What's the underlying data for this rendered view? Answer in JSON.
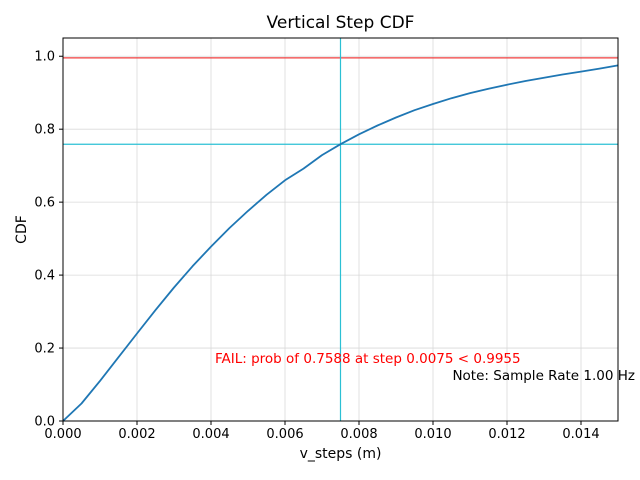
{
  "chart_data": {
    "type": "line",
    "title": "Vertical Step CDF",
    "xlabel": "v_steps (m)",
    "ylabel": "CDF",
    "xlim": [
      0,
      0.015
    ],
    "ylim": [
      0,
      1.05
    ],
    "grid": true,
    "xticks": [
      0.0,
      0.002,
      0.004,
      0.006,
      0.008,
      0.01,
      0.012,
      0.014
    ],
    "xtick_labels": [
      "0.000",
      "0.002",
      "0.004",
      "0.006",
      "0.008",
      "0.010",
      "0.012",
      "0.014"
    ],
    "yticks": [
      0.0,
      0.2,
      0.4,
      0.6,
      0.8,
      1.0
    ],
    "ytick_labels": [
      "0.0",
      "0.2",
      "0.4",
      "0.6",
      "0.8",
      "1.0"
    ],
    "colors": {
      "curve": "#1f77b4",
      "threshold_line": "#f03e3e",
      "marker_line": "#2bc0d4",
      "grid": "#d9d9d9",
      "spine": "#000000",
      "fail_text": "#ff0000"
    },
    "series": [
      {
        "name": "vertical-step-cdf",
        "x": [
          0.0,
          0.0005,
          0.001,
          0.0015,
          0.002,
          0.0025,
          0.003,
          0.0035,
          0.004,
          0.0045,
          0.005,
          0.0055,
          0.006,
          0.0065,
          0.007,
          0.0075,
          0.008,
          0.0085,
          0.009,
          0.0095,
          0.01,
          0.0105,
          0.011,
          0.0115,
          0.012,
          0.0125,
          0.013,
          0.0135,
          0.014,
          0.0145,
          0.015
        ],
        "y": [
          0.0,
          0.048,
          0.11,
          0.175,
          0.24,
          0.304,
          0.366,
          0.424,
          0.478,
          0.529,
          0.576,
          0.62,
          0.66,
          0.692,
          0.729,
          0.7588,
          0.786,
          0.81,
          0.832,
          0.852,
          0.869,
          0.885,
          0.899,
          0.911,
          0.922,
          0.932,
          0.941,
          0.95,
          0.958,
          0.966,
          0.975
        ]
      }
    ],
    "reference_lines": [
      {
        "name": "threshold-hline",
        "type": "hline",
        "value": 0.9955
      },
      {
        "name": "prob-hline",
        "type": "hline",
        "value": 0.7588
      },
      {
        "name": "step-vline",
        "type": "vline",
        "value": 0.0075
      }
    ],
    "annotations": {
      "fail": {
        "text": "FAIL: prob of 0.7588 at step 0.0075 < 0.9955"
      },
      "note": {
        "text": "Note: Sample Rate 1.00 Hz"
      }
    },
    "key_values": {
      "prob": 0.7588,
      "step": 0.0075,
      "threshold": 0.9955,
      "sample_rate_hz": "1.00"
    }
  }
}
